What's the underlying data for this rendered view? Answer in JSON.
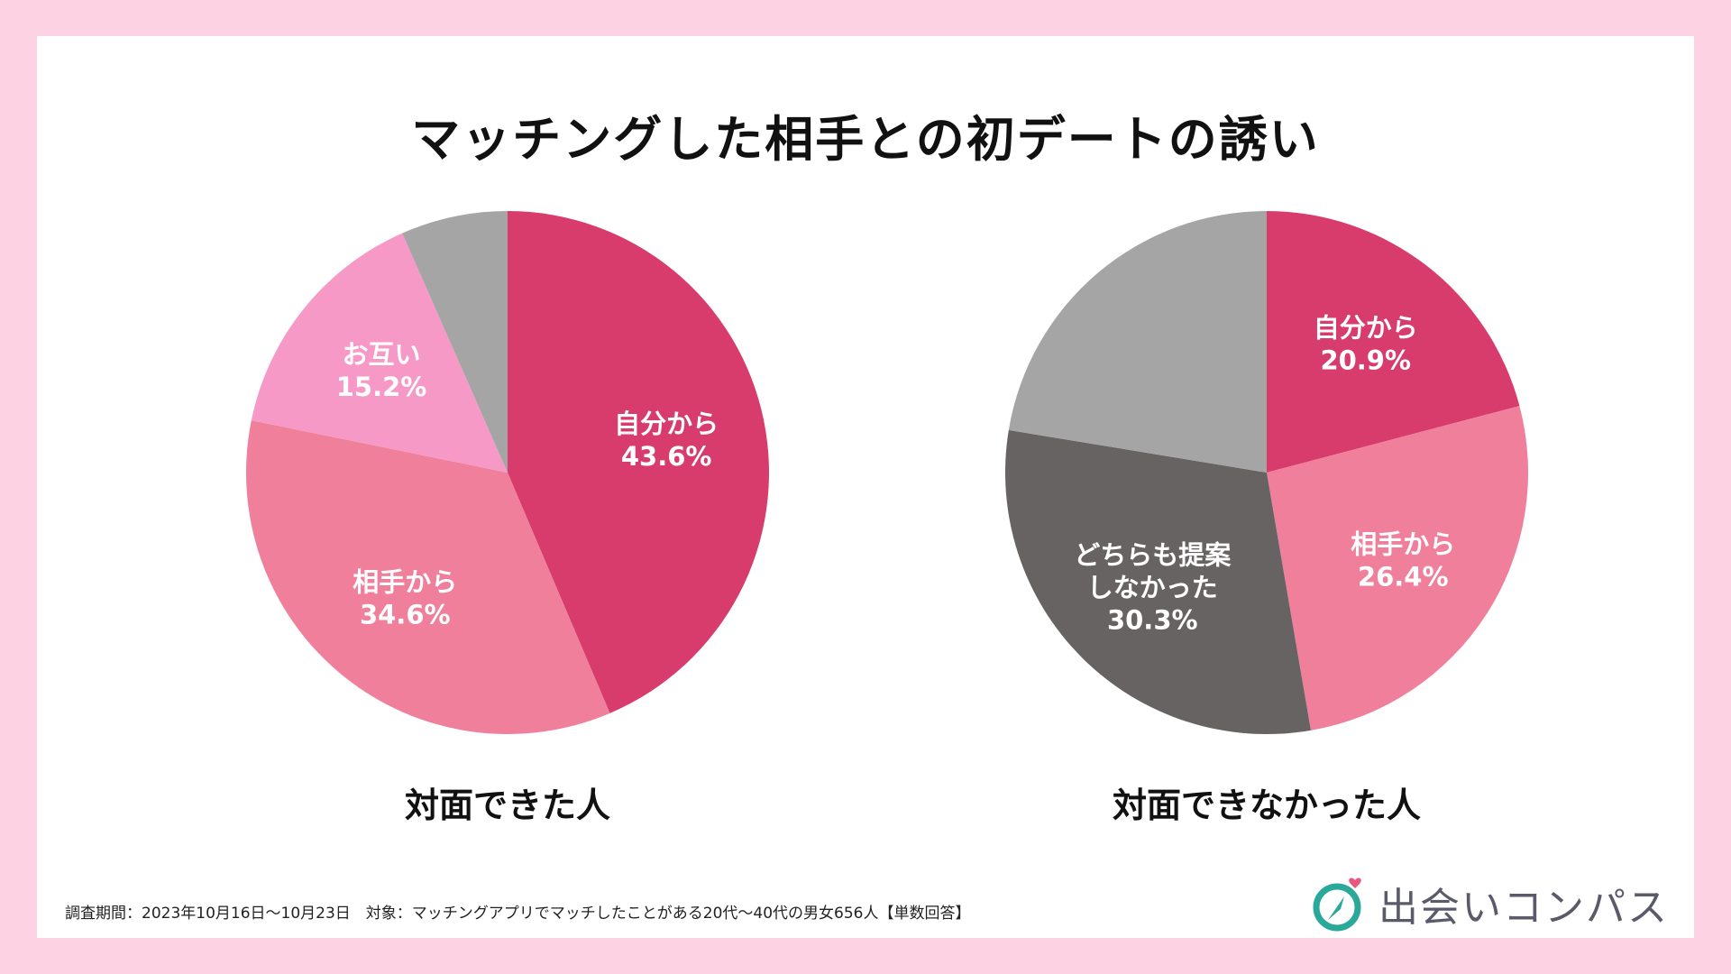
{
  "title": "マッチングした相手との初デートの誘い",
  "chart_data": [
    {
      "type": "pie",
      "caption": "対面できた人",
      "slices": [
        {
          "label": "自分から",
          "value_text": "43.6%",
          "value": 43.6,
          "color": "#d83c6c",
          "labeled": true
        },
        {
          "label": "相手から",
          "value_text": "34.6%",
          "value": 34.6,
          "color": "#f07f9b",
          "labeled": true
        },
        {
          "label": "お互い",
          "value_text": "15.2%",
          "value": 15.2,
          "color": "#f799c6",
          "labeled": true
        },
        {
          "label": "",
          "value_text": "",
          "value": 6.6,
          "color": "#a5a5a5",
          "labeled": false
        }
      ]
    },
    {
      "type": "pie",
      "caption": "対面できなかった人",
      "slices": [
        {
          "label": "自分から",
          "value_text": "20.9%",
          "value": 20.9,
          "color": "#d83c6c",
          "labeled": true
        },
        {
          "label": "相手から",
          "value_text": "26.4%",
          "value": 26.4,
          "color": "#f07f9b",
          "labeled": true
        },
        {
          "label": "どちらも提案\nしなかった",
          "value_text": "30.3%",
          "value": 30.3,
          "color": "#676362",
          "labeled": true
        },
        {
          "label": "",
          "value_text": "",
          "value": 22.4,
          "color": "#a5a5a5",
          "labeled": false
        }
      ]
    }
  ],
  "footnote": "調査期間：2023年10月16日〜10月23日　対象：マッチングアプリでマッチしたことがある20代〜40代の男女656人【単数回答】",
  "logo": {
    "text": "出会いコンパス",
    "ring_color": "#2aa89a",
    "heart_color": "#e8577e"
  }
}
